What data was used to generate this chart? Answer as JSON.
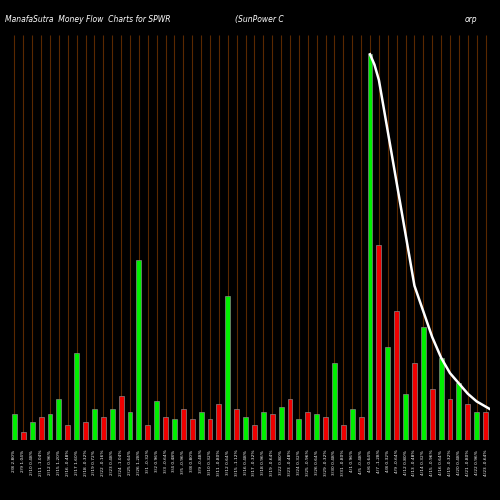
{
  "title_left": "ManafaSutra  Money Flow  Charts for SPWR",
  "title_mid": "(SunPower C",
  "title_right": "orp",
  "background_color": "#000000",
  "bar_color_up": "#00ee00",
  "bar_color_down": "#ee0000",
  "orange_line_color": "#5a2800",
  "figsize": [
    5.0,
    5.0
  ],
  "dpi": 100,
  "categories": [
    "2/8 2.80%",
    "2/9 1.04%",
    "2/10 0.48%",
    "2/11 -1.04%",
    "2/12 0.96%",
    "2/15 1.20%",
    "2/16 -0.48%",
    "2/17 1.60%",
    "2/18 -0.32%",
    "2/19 0.72%",
    "2/22 -0.16%",
    "2/23 0.48%",
    "2/24 -1.04%",
    "2/25 0.64%",
    "2/26 1.28%",
    "3/1 -0.32%",
    "3/2 0.96%",
    "3/3 -0.64%",
    "3/4 0.48%",
    "3/5 -0.96%",
    "3/8 0.80%",
    "3/9 -0.48%",
    "3/10 0.32%",
    "3/11 -0.80%",
    "3/12 0.64%",
    "3/15 -1.12%",
    "3/16 0.48%",
    "3/17 -0.32%",
    "3/18 0.96%",
    "3/19 -0.64%",
    "3/22 0.80%",
    "3/23 -0.48%",
    "3/24 0.32%",
    "3/25 -0.96%",
    "3/26 0.64%",
    "3/29 -0.32%",
    "3/30 0.48%",
    "3/31 -0.80%",
    "4/1 0.96%",
    "4/5 -0.48%",
    "4/6 0.64%",
    "4/7 -1.28%",
    "4/8 0.32%",
    "4/9 -0.64%",
    "4/12 0.80%",
    "4/13 -0.48%",
    "4/14 0.32%",
    "4/15 -0.96%",
    "4/16 0.64%",
    "4/19 -0.32%",
    "4/20 0.48%",
    "4/21 -0.80%",
    "4/22 0.96%",
    "4/23 -0.64%"
  ],
  "signs": [
    1,
    -1,
    1,
    -1,
    1,
    1,
    -1,
    1,
    -1,
    1,
    -1,
    1,
    -1,
    1,
    1,
    -1,
    1,
    -1,
    1,
    -1,
    -1,
    1,
    -1,
    -1,
    1,
    -1,
    1,
    -1,
    1,
    -1,
    1,
    -1,
    1,
    -1,
    1,
    -1,
    1,
    -1,
    1,
    -1,
    1,
    -1,
    1,
    -1,
    1,
    -1,
    1,
    -1,
    1,
    -1,
    1,
    -1,
    1,
    -1
  ],
  "values": [
    0.5,
    0.15,
    0.35,
    0.45,
    0.5,
    0.8,
    0.3,
    1.7,
    0.35,
    0.6,
    0.45,
    0.6,
    0.85,
    0.55,
    3.5,
    0.3,
    0.75,
    0.45,
    0.4,
    0.6,
    0.4,
    0.55,
    0.4,
    0.7,
    2.8,
    0.6,
    0.45,
    0.3,
    0.55,
    0.5,
    0.65,
    0.8,
    0.4,
    0.55,
    0.5,
    0.45,
    1.5,
    0.3,
    0.6,
    0.45,
    7.5,
    3.8,
    1.8,
    2.5,
    0.9,
    1.5,
    2.2,
    1.0,
    1.6,
    0.8,
    1.1,
    0.7,
    0.55,
    0.55
  ],
  "white_line_x": [
    40.0,
    40.5,
    41.0,
    41.5,
    42.0,
    42.5,
    43.0,
    43.5,
    44.0,
    44.5,
    45.0,
    46.0,
    47.0,
    48.0,
    49.0,
    50.0,
    51.0,
    52.0,
    53.5
  ],
  "white_line_y": [
    7.5,
    7.3,
    7.0,
    6.5,
    6.0,
    5.5,
    5.0,
    4.5,
    4.0,
    3.5,
    3.0,
    2.5,
    2.0,
    1.6,
    1.3,
    1.1,
    0.9,
    0.75,
    0.6
  ]
}
